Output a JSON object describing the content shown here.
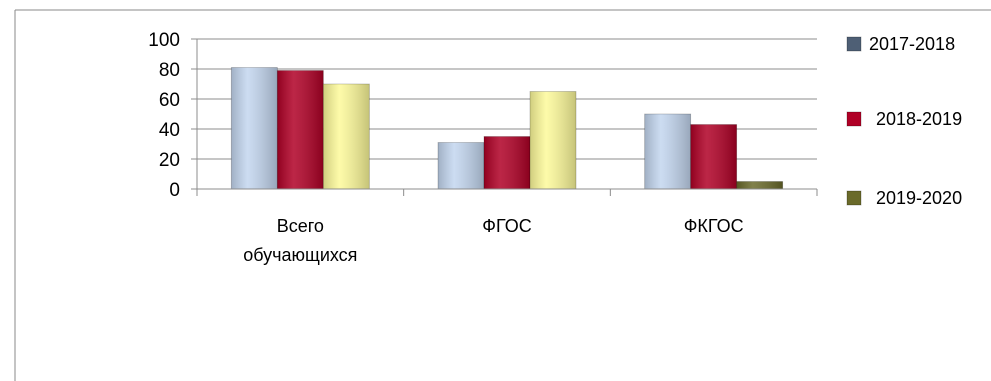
{
  "chart_data": {
    "type": "bar",
    "categories": [
      [
        "Всего",
        "обучающихся"
      ],
      [
        "ФГОС"
      ],
      [
        "ФКГОС"
      ]
    ],
    "series": [
      {
        "name": "2017-2018",
        "values": [
          81,
          31,
          50
        ],
        "color": "#c3d6ef",
        "legend_color": "#4e5f75"
      },
      {
        "name": "2018-2019",
        "values": [
          79,
          35,
          43
        ],
        "color": "#b00026",
        "legend_color": "#b00026"
      },
      {
        "name": "2019-2020",
        "values": [
          70,
          65,
          5
        ],
        "color": "#fdfa9a",
        "legend_color": "#6a6a2a",
        "small_value_color": "#6a6a2a"
      }
    ],
    "ylim": [
      0,
      100
    ],
    "yticks": [
      0,
      20,
      40,
      60,
      80,
      100
    ],
    "grid": true,
    "legend": "right"
  }
}
